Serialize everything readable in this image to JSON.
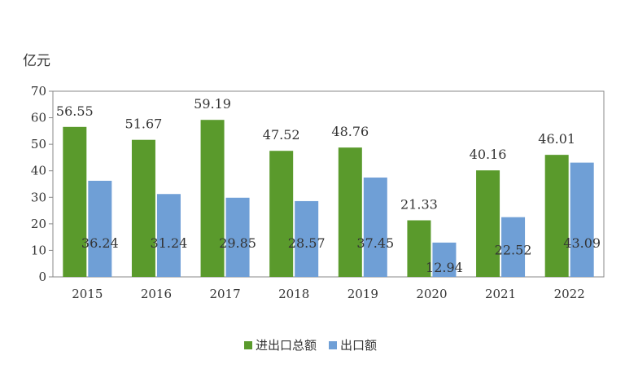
{
  "chart_data": {
    "type": "bar",
    "unit_label": "亿元",
    "categories": [
      "2015",
      "2016",
      "2017",
      "2018",
      "2019",
      "2020",
      "2021",
      "2022"
    ],
    "series": [
      {
        "name": "进出口总额",
        "color": "#5a9a2c",
        "values": [
          56.55,
          51.67,
          59.19,
          47.52,
          48.76,
          21.33,
          40.16,
          46.01
        ],
        "labels": [
          "56.55",
          "51.67",
          "59.19",
          "47.52",
          "48.76",
          "21.33",
          "40.16",
          "46.01"
        ]
      },
      {
        "name": "出口额",
        "color": "#6f9fd6",
        "values": [
          36.24,
          31.24,
          29.85,
          28.57,
          37.45,
          12.94,
          22.52,
          43.09
        ],
        "labels": [
          "36.24",
          "31.24",
          "29.85",
          "28.57",
          "37.45",
          "12.94",
          "22.52",
          "43.09"
        ]
      }
    ],
    "ylim": [
      0,
      70
    ],
    "yticks": [
      "0",
      "10",
      "20",
      "30",
      "40",
      "50",
      "60",
      "70"
    ],
    "grid": false,
    "legend_position": "bottom"
  }
}
